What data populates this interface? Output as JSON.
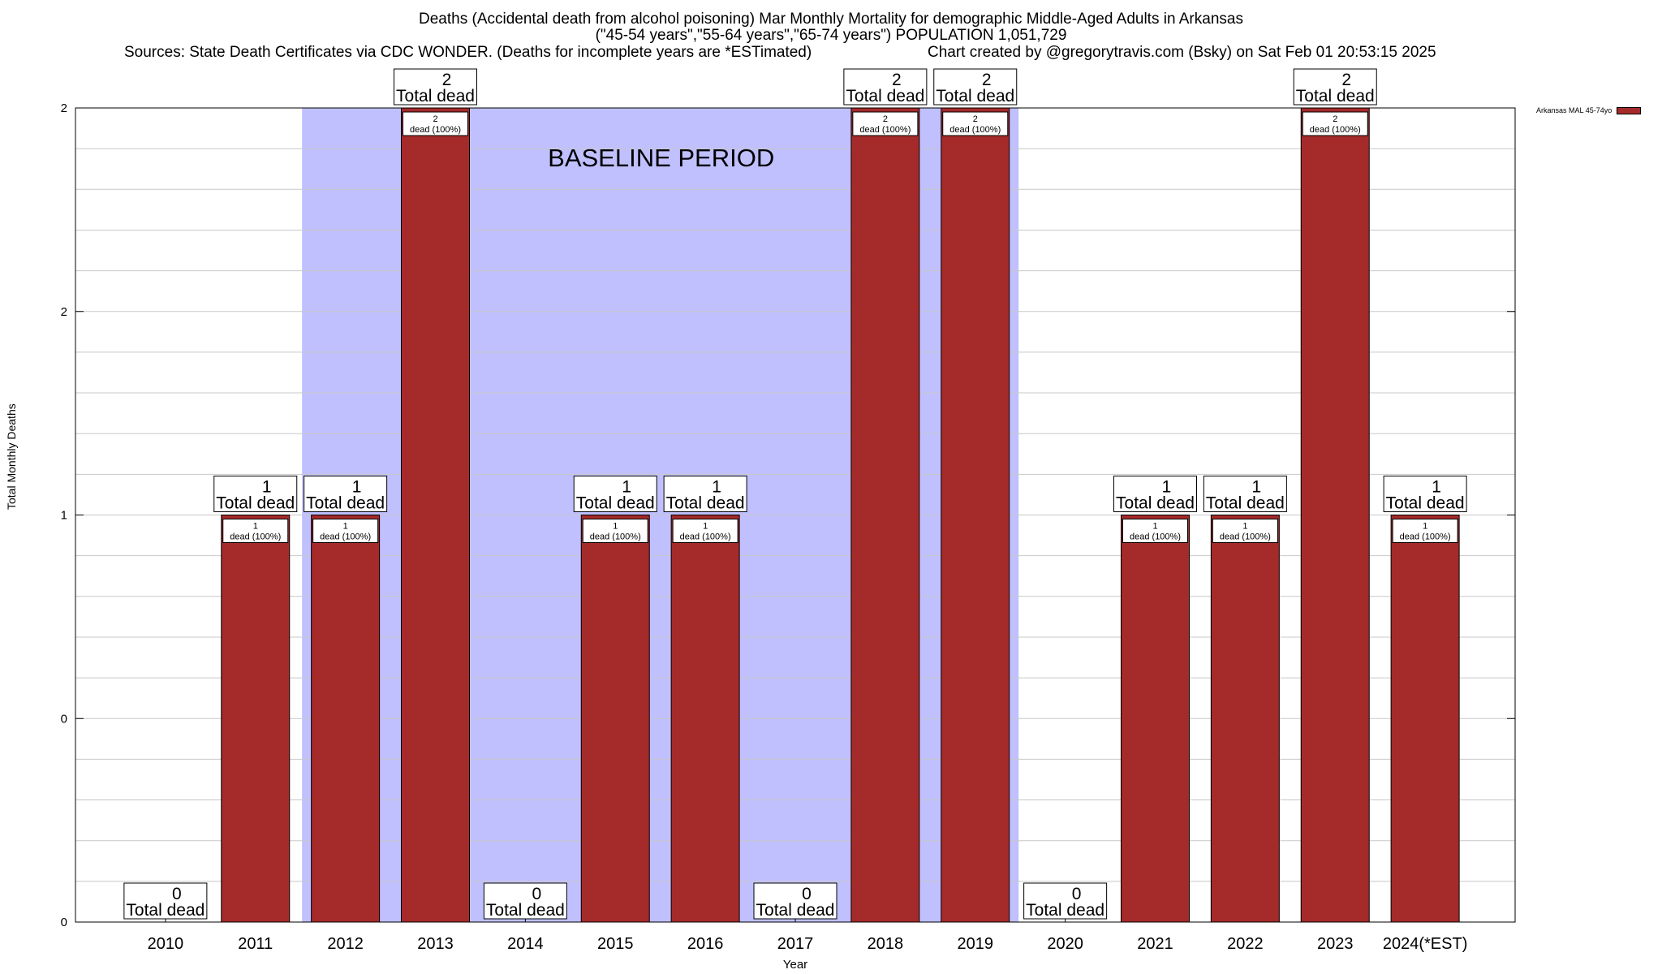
{
  "header": {
    "title_line1": "Deaths (Accidental death from alcohol poisoning) Mar Monthly Mortality for demographic Middle-Aged Adults in Arkansas",
    "title_line2": "(\"45-54 years\",\"55-64 years\",\"65-74 years\") POPULATION 1,051,729",
    "sources": "Sources: State Death Certificates via CDC WONDER. (Deaths for incomplete years are *ESTimated)",
    "credit": "Chart created by @gregorytravis.com (Bsky) on Sat Feb 01 20:53:15 2025"
  },
  "chart_data": {
    "type": "bar",
    "title": "Deaths (Accidental death from alcohol poisoning) Mar Monthly Mortality for demographic Middle-Aged Adults in Arkansas",
    "xlabel": "Year",
    "ylabel": "Total Monthly Deaths",
    "categories": [
      "2010",
      "2011",
      "2012",
      "2013",
      "2014",
      "2015",
      "2016",
      "2017",
      "2018",
      "2019",
      "2020",
      "2021",
      "2022",
      "2023",
      "2024(*EST)"
    ],
    "series": [
      {
        "name": "Arkansas MAL 45-74yo",
        "color": "#a52a2a",
        "values": [
          0,
          1,
          1,
          2,
          0,
          1,
          1,
          0,
          2,
          2,
          0,
          1,
          1,
          2,
          1
        ]
      }
    ],
    "y_tick_labels": [
      "0",
      "0",
      "1",
      "2",
      "2"
    ],
    "ylim": [
      0,
      2
    ],
    "total_label_suffix": "Total dead",
    "inner_label_suffix": "dead (100%)",
    "baseline_period": {
      "label": "BASELINE PERIOD",
      "start": "2012",
      "end": "2019",
      "color": "#c0c0ff"
    },
    "grid": true,
    "legend_position": "top-right"
  }
}
